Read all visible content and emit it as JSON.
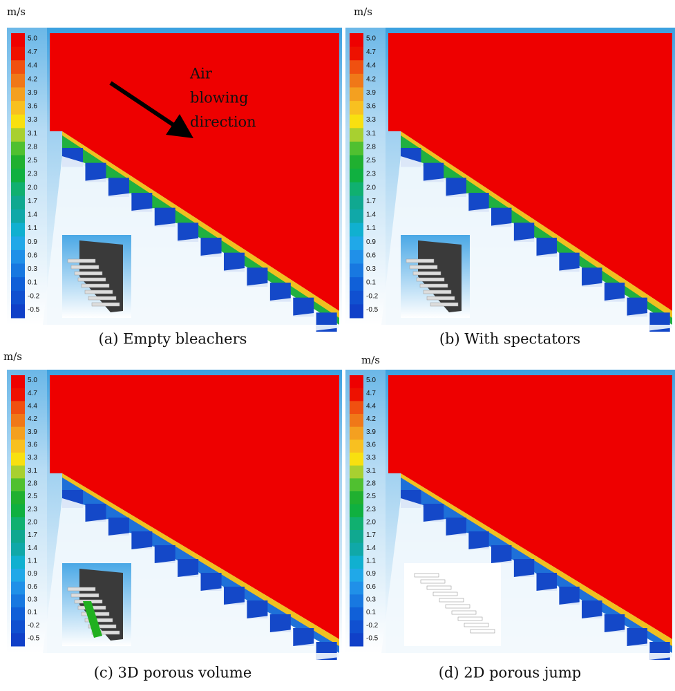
{
  "panels": [
    {
      "unit": "m/s",
      "caption": "(a) Empty bleachers",
      "annotation": [
        "Air",
        "blowing",
        "direction"
      ]
    },
    {
      "unit": "m/s",
      "caption": "(b) With spectators"
    },
    {
      "unit": "m/s",
      "caption": "(c) 3D porous volume"
    },
    {
      "unit": "m/s",
      "caption": "(d) 2D porous jump"
    }
  ],
  "colorbar_labels": [
    "5.0",
    "4.7",
    "4.4",
    "4.2",
    "3.9",
    "3.6",
    "3.3",
    "3.1",
    "2.8",
    "2.5",
    "2.3",
    "2.0",
    "1.7",
    "1.4",
    "1.1",
    "0.9",
    "0.6",
    "0.3",
    "0.1",
    "-0.2",
    "-0.5"
  ]
}
